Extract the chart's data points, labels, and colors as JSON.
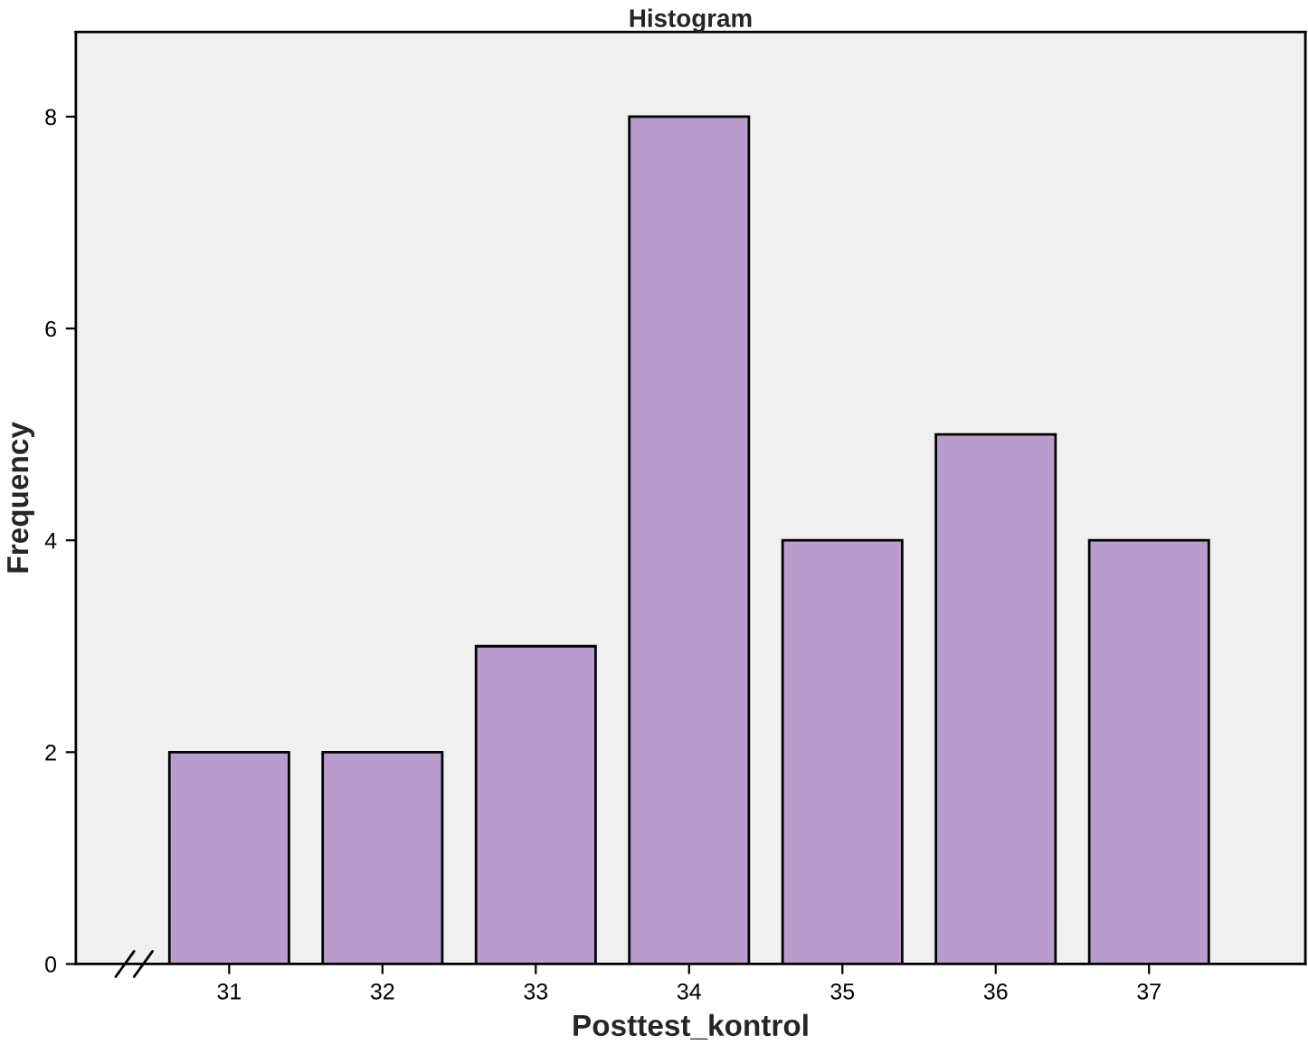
{
  "chart_data": {
    "type": "bar",
    "title": "Histogram",
    "xlabel": "Posttest_kontrol",
    "ylabel": "Frequency",
    "categories": [
      "31",
      "32",
      "33",
      "34",
      "35",
      "36",
      "37"
    ],
    "values": [
      2,
      2,
      3,
      8,
      4,
      5,
      4
    ],
    "color": "#b89ccc",
    "ylim": [
      0,
      8.8
    ],
    "yticks": [
      0,
      2,
      4,
      6,
      8
    ],
    "grid": false
  }
}
